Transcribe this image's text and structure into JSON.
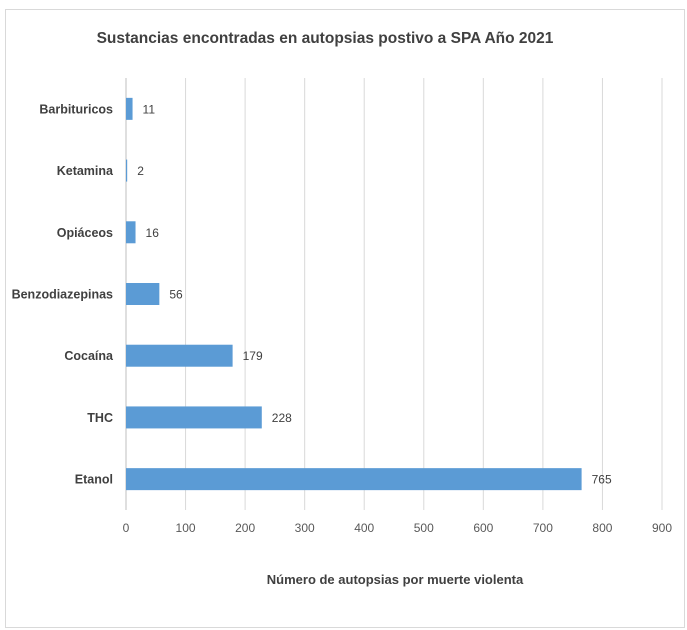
{
  "chart_data": {
    "type": "bar",
    "orientation": "horizontal",
    "title": "Sustancias encontradas en autopsias postivo a SPA Año 2021",
    "xlabel": "Número de autopsias por muerte violenta",
    "ylabel": "",
    "categories": [
      "Barbituricos",
      "Ketamina",
      "Opiáceos",
      "Benzodiazepinas",
      "Cocaína",
      "THC",
      "Etanol"
    ],
    "values": [
      11,
      2,
      16,
      56,
      179,
      228,
      765
    ],
    "xlim": [
      0,
      900
    ],
    "xticks": [
      "0",
      "100",
      "200",
      "300",
      "400",
      "500",
      "600",
      "700",
      "800",
      "900"
    ],
    "grid": true,
    "bar_color": "#5b9bd5",
    "data_labels": true
  }
}
